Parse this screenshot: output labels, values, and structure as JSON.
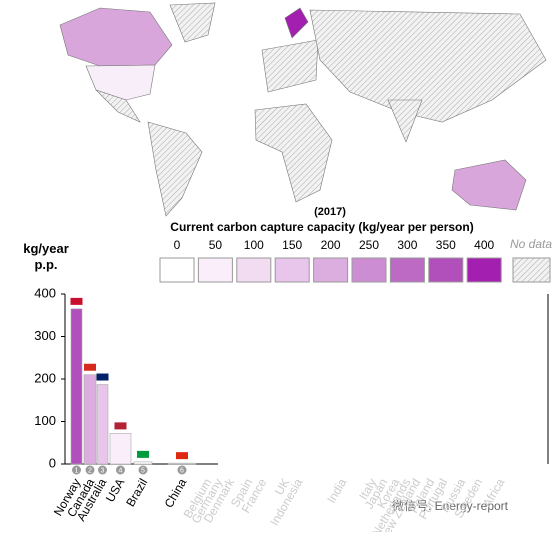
{
  "chart_data": {
    "type": "bar",
    "map_year": "(2017)",
    "legend": {
      "title": "Current carbon capture capacity (kg/year per person)",
      "labels": [
        0,
        50,
        100,
        150,
        200,
        250,
        300,
        350,
        400
      ],
      "colors": [
        "#ffffff",
        "#f9eef9",
        "#f1dcf2",
        "#e8c5ea",
        "#dcaddf",
        "#cd8dd2",
        "#bd6ac5",
        "#b14fbb",
        "#a31fb0"
      ],
      "no_data": "No data"
    },
    "ylabel": "kg/year p.p.",
    "categories": [
      "Norway",
      "Canada",
      "Australia",
      "USA",
      "Brazil",
      "China",
      "Belgium",
      "Germany",
      "Denmark",
      "Spain",
      "France",
      "UK",
      "Indonesia",
      "India",
      "Italy",
      "Japan",
      "Korea",
      "Netherlands",
      "New Zealand",
      "Poland",
      "Portugal",
      "Russia",
      "Sweden",
      "Africa"
    ],
    "values": [
      365,
      210,
      187,
      72,
      5,
      2,
      0,
      0,
      0,
      0,
      0,
      0,
      0,
      0,
      0,
      0,
      0,
      0,
      0,
      0,
      0,
      0,
      0,
      0
    ],
    "ranks": [
      1,
      2,
      3,
      4,
      5,
      6
    ],
    "ylim": [
      0,
      400
    ],
    "yticks": [
      0,
      100,
      200,
      300,
      400
    ],
    "watermark": "微信号: Energy-report"
  }
}
